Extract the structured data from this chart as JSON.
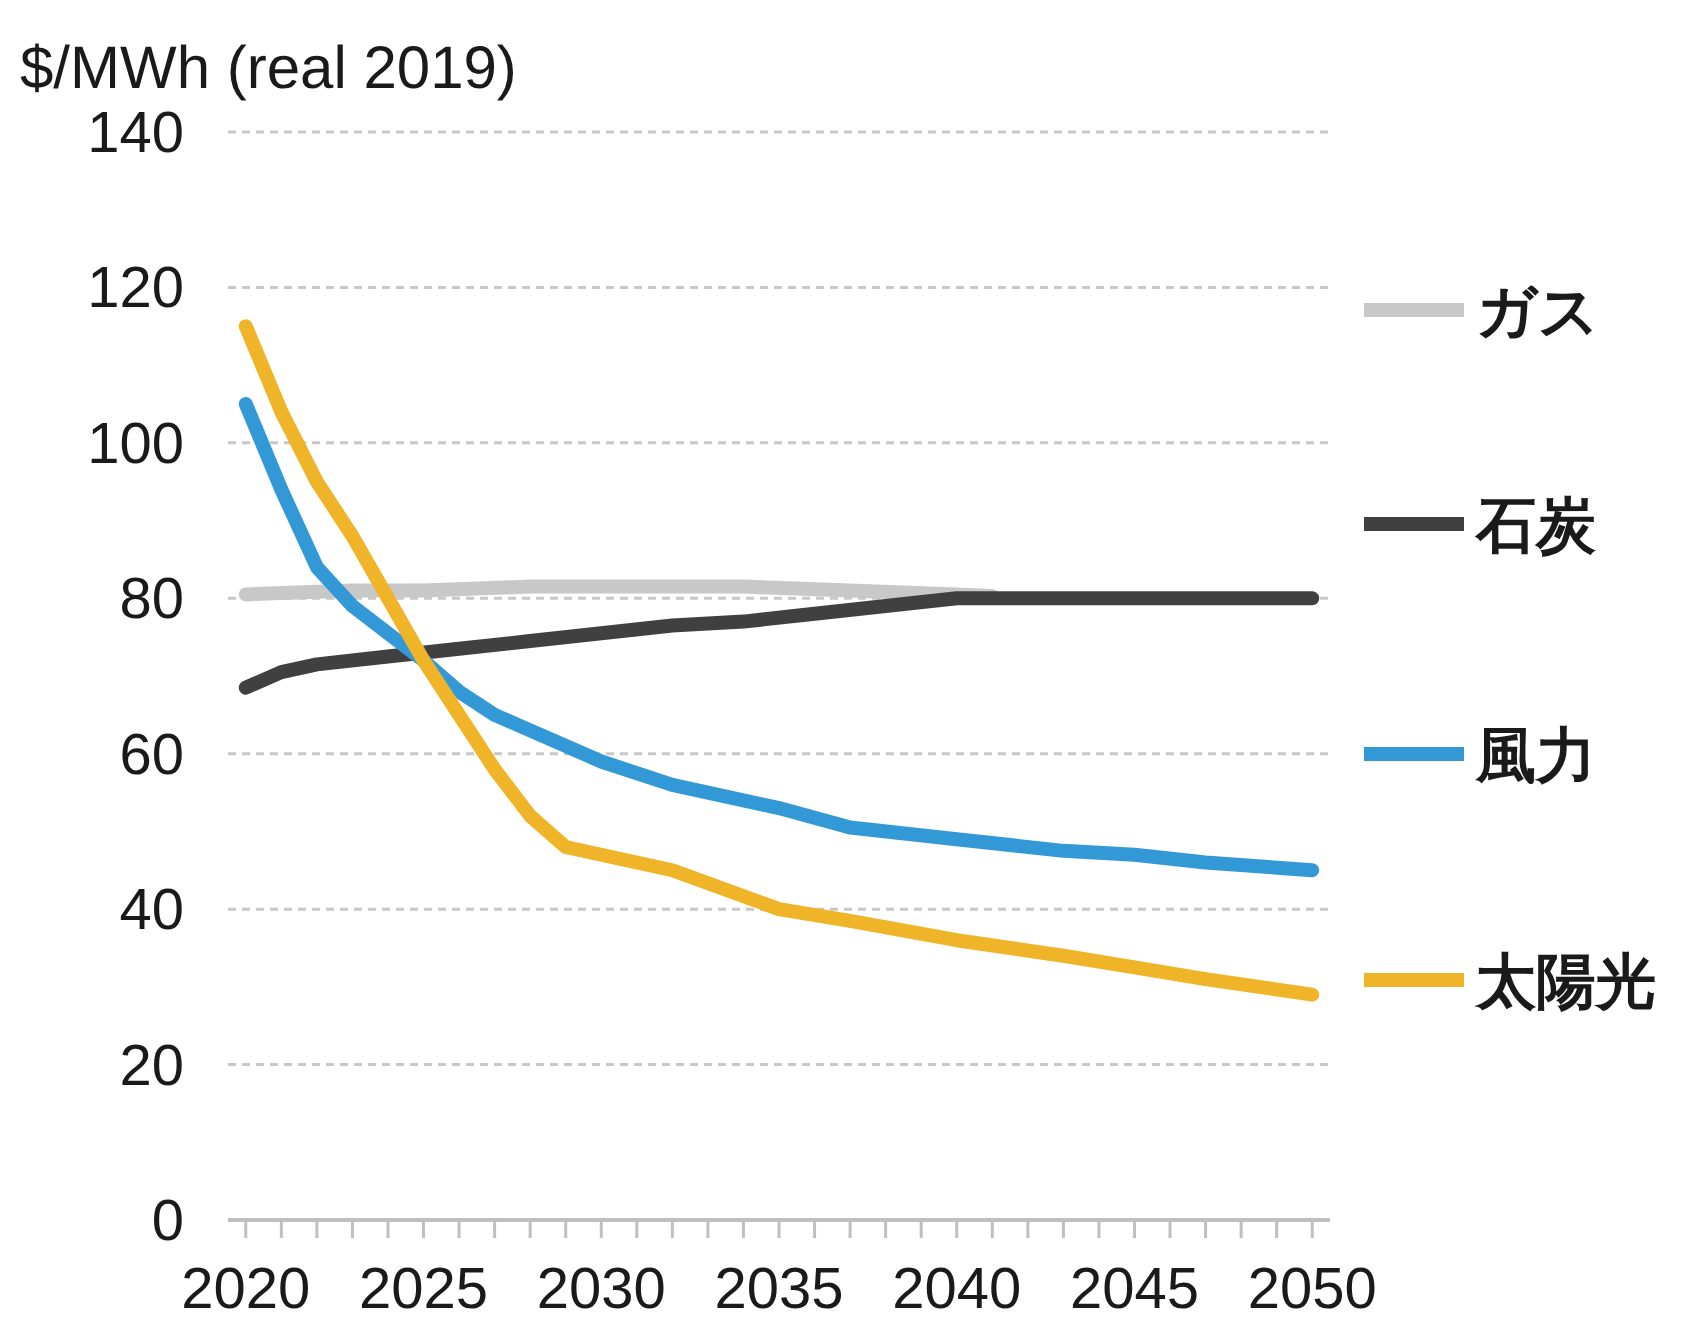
{
  "chart_data": {
    "type": "line",
    "ylabel": "$/MWh (real 2019)",
    "xlim": [
      2019.5,
      2050.5
    ],
    "xticks": [
      2020,
      {
        "value": 2021,
        "label": null
      },
      {
        "value": 2022,
        "label": null
      },
      {
        "value": 2023,
        "label": null
      },
      {
        "value": 2024,
        "label": null
      },
      2025,
      {
        "value": 2026,
        "label": null
      },
      {
        "value": 2027,
        "label": null
      },
      {
        "value": 2028,
        "label": null
      },
      {
        "value": 2029,
        "label": null
      },
      2030,
      {
        "value": 2031,
        "label": null
      },
      {
        "value": 2032,
        "label": null
      },
      {
        "value": 2033,
        "label": null
      },
      {
        "value": 2034,
        "label": null
      },
      2035,
      {
        "value": 2036,
        "label": null
      },
      {
        "value": 2037,
        "label": null
      },
      {
        "value": 2038,
        "label": null
      },
      {
        "value": 2039,
        "label": null
      },
      2040,
      {
        "value": 2041,
        "label": null
      },
      {
        "value": 2042,
        "label": null
      },
      {
        "value": 2043,
        "label": null
      },
      {
        "value": 2044,
        "label": null
      },
      2045,
      {
        "value": 2046,
        "label": null
      },
      {
        "value": 2047,
        "label": null
      },
      {
        "value": 2048,
        "label": null
      },
      {
        "value": 2049,
        "label": null
      },
      2050
    ],
    "ylim": [
      0,
      140
    ],
    "yticks": [
      0,
      20,
      40,
      60,
      80,
      100,
      120,
      140
    ],
    "grid": "y",
    "legend": "right",
    "line_style": "solid",
    "marker": "none",
    "series": [
      {
        "name": "ガス",
        "color": "#c8c8c8",
        "x": [
          2020,
          2023,
          2025,
          2028,
          2031,
          2034,
          2037,
          2040,
          2041
        ],
        "values": [
          80.5,
          81,
          81,
          81.5,
          81.5,
          81.5,
          81,
          80.5,
          80.3
        ]
      },
      {
        "name": "石炭",
        "color": "#404040",
        "x": [
          2020,
          2021,
          2022,
          2024,
          2026,
          2028,
          2030,
          2032,
          2034,
          2036,
          2038,
          2040,
          2045,
          2050
        ],
        "values": [
          68.5,
          70.5,
          71.5,
          72.5,
          73.5,
          74.5,
          75.5,
          76.5,
          77,
          78,
          79,
          80,
          80,
          80
        ]
      },
      {
        "name": "風力",
        "color": "#3399d6",
        "x": [
          2020,
          2021,
          2022,
          2023,
          2024,
          2025,
          2026,
          2027,
          2028,
          2030,
          2032,
          2035,
          2037,
          2040,
          2043,
          2045,
          2047,
          2050
        ],
        "values": [
          105,
          94,
          84,
          79,
          75.5,
          72,
          68,
          65,
          63,
          59,
          56,
          53,
          50.5,
          49,
          47.5,
          47,
          46,
          45
        ]
      },
      {
        "name": "太陽光",
        "color": "#f0b428",
        "x": [
          2020,
          2021,
          2022,
          2023,
          2024,
          2025,
          2026,
          2027,
          2028,
          2029,
          2030,
          2032,
          2035,
          2037,
          2040,
          2043,
          2045,
          2047,
          2050
        ],
        "values": [
          115,
          104,
          95,
          88,
          80,
          72,
          65,
          58,
          52,
          48,
          47,
          45,
          40,
          38.5,
          36,
          34,
          32.5,
          31,
          29
        ]
      }
    ]
  }
}
